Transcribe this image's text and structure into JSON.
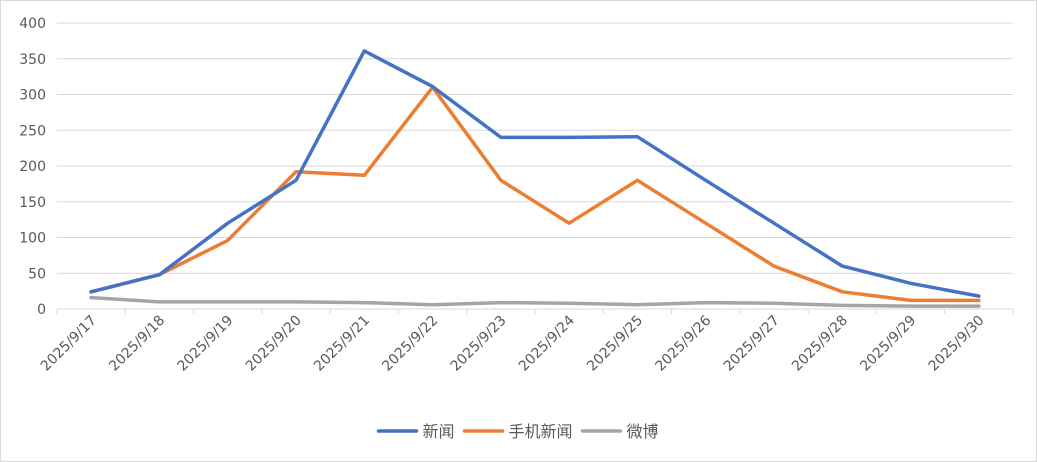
{
  "chart_data": {
    "type": "line",
    "title": "",
    "xlabel": "",
    "ylabel": "",
    "categories": [
      "2025/9/17",
      "2025/9/18",
      "2025/9/19",
      "2025/9/20",
      "2025/9/21",
      "2025/9/22",
      "2025/9/23",
      "2025/9/24",
      "2025/9/25",
      "2025/9/26",
      "2025/9/27",
      "2025/9/28",
      "2025/9/29",
      "2025/9/30"
    ],
    "ylim": [
      0,
      400
    ],
    "yticks": [
      0,
      50,
      100,
      150,
      200,
      250,
      300,
      350,
      400
    ],
    "grid": true,
    "legend_position": "bottom",
    "series": [
      {
        "name": "新闻",
        "color": "#4472C4",
        "values": [
          24,
          48,
          120,
          180,
          361,
          311,
          240,
          240,
          241,
          180,
          120,
          60,
          36,
          18
        ]
      },
      {
        "name": "手机新闻",
        "color": "#ED7D31",
        "values": [
          24,
          48,
          96,
          192,
          187,
          310,
          180,
          120,
          180,
          120,
          60,
          24,
          12,
          12
        ]
      },
      {
        "name": "微博",
        "color": "#A5A5A5",
        "values": [
          16,
          10,
          10,
          10,
          9,
          6,
          9,
          8,
          6,
          9,
          8,
          5,
          4,
          4
        ]
      }
    ]
  }
}
